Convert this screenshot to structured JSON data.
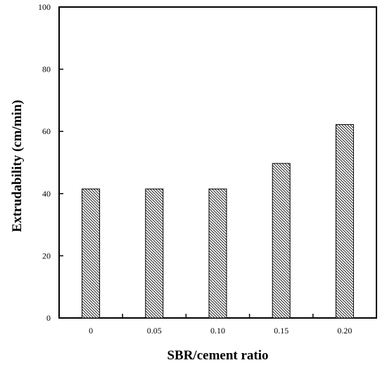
{
  "chart_data": {
    "type": "bar",
    "categories": [
      "0",
      "0.05",
      "0.10",
      "0.15",
      "0.20"
    ],
    "values": [
      41.5,
      41.5,
      41.5,
      49.7,
      62.2
    ],
    "xlabel": "SBR/cement ratio",
    "ylabel": "Extrudability (cm/min)",
    "ylim": [
      0,
      100
    ],
    "yticks": [
      0,
      20,
      40,
      60,
      80,
      100
    ],
    "grid": false,
    "bar_fill": "hatched",
    "colors": {
      "bar_stroke": "#000000",
      "hatch": "#000000",
      "background": "#ffffff"
    }
  }
}
